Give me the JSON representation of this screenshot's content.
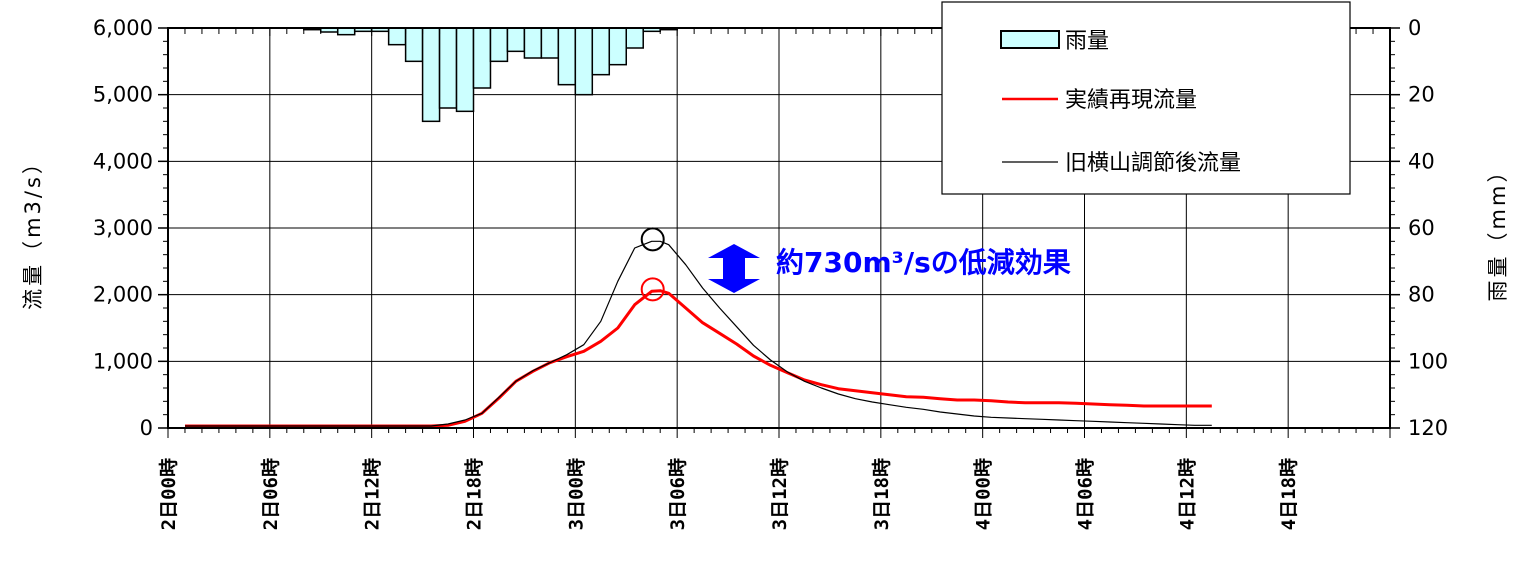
{
  "chart_data": {
    "type": "line",
    "x_tick_labels": [
      "2日00時",
      "2日06時",
      "2日12時",
      "2日18時",
      "3日00時",
      "3日06時",
      "3日12時",
      "3日18時",
      "4日00時",
      "4日06時",
      "4日12時",
      "4日18時"
    ],
    "y_left": {
      "label": "流量（m3/s）",
      "ticks": [
        "6,000",
        "5,000",
        "4,000",
        "3,000",
        "2,000",
        "1,000",
        "0"
      ],
      "range": [
        0,
        6000
      ]
    },
    "y_right": {
      "label": "雨量（mm）",
      "ticks": [
        "0",
        "20",
        "40",
        "60",
        "80",
        "100",
        "120"
      ],
      "range": [
        0,
        120
      ],
      "inverted": true
    },
    "x_range_hours": [
      0,
      72
    ],
    "rainfall": {
      "name": "雨量",
      "color": "#ccffff",
      "hours": [
        8,
        9,
        10,
        11,
        12,
        13,
        14,
        15,
        16,
        17,
        18,
        19,
        20,
        21,
        22,
        23,
        24,
        25,
        26,
        27,
        28,
        29
      ],
      "values": [
        0.5,
        1.2,
        2,
        1,
        1,
        5,
        10,
        28,
        24,
        25,
        18,
        10,
        7,
        9,
        9,
        17,
        20,
        14,
        11,
        6,
        1,
        0.5
      ]
    },
    "series": [
      {
        "name": "実績再現流量",
        "color": "#ff0000",
        "x": [
          1,
          4,
          8,
          12,
          14,
          15.5,
          16.5,
          17.5,
          18.5,
          19.5,
          20.5,
          21.5,
          22.5,
          23.5,
          24.5,
          25.5,
          26.5,
          27.5,
          28.5,
          29,
          29.5,
          30.5,
          31.5,
          32.5,
          33.5,
          34.5,
          35.5,
          36.5,
          37.5,
          38.5,
          39.5,
          40.5,
          41.5,
          42.5,
          43.5,
          44.5,
          45.5,
          46.5,
          47.5,
          48.5,
          49.5,
          50.5,
          51.5,
          52.5,
          53.5,
          54.5,
          55.5,
          56.5,
          57.5,
          58.5,
          59.5,
          60.5,
          61.5
        ],
        "y": [
          30,
          30,
          30,
          30,
          30,
          30,
          40,
          100,
          220,
          450,
          700,
          850,
          980,
          1070,
          1150,
          1300,
          1500,
          1850,
          2050,
          2060,
          2020,
          1800,
          1580,
          1420,
          1260,
          1080,
          940,
          830,
          720,
          650,
          590,
          560,
          530,
          500,
          470,
          460,
          440,
          420,
          420,
          410,
          390,
          380,
          380,
          380,
          370,
          360,
          350,
          340,
          330,
          330,
          330,
          330,
          330
        ]
      },
      {
        "name": "旧横山調節後流量",
        "color": "#000000",
        "x": [
          1,
          4,
          8,
          12,
          14,
          15.5,
          16.5,
          17.5,
          18.5,
          19.5,
          20.5,
          21.5,
          22.5,
          23.5,
          24.5,
          25.5,
          26.5,
          27.5,
          28.5,
          29,
          29.5,
          30.5,
          31.5,
          32.5,
          33.5,
          34.5,
          35.5,
          36.5,
          37.5,
          38.5,
          39.5,
          40.5,
          41.5,
          42.5,
          43.5,
          44.5,
          45.5,
          46.5,
          47.5,
          48.5,
          49.5,
          50.5,
          51.5,
          52.5,
          53.5,
          54.5,
          55.5,
          56.5,
          57.5,
          58.5,
          59.5,
          60.5,
          61.5
        ],
        "y": [
          30,
          30,
          30,
          30,
          30,
          30,
          60,
          120,
          220,
          460,
          700,
          860,
          980,
          1100,
          1250,
          1600,
          2200,
          2700,
          2800,
          2800,
          2750,
          2450,
          2100,
          1800,
          1520,
          1240,
          1020,
          840,
          700,
          600,
          510,
          440,
          390,
          350,
          310,
          280,
          240,
          210,
          180,
          160,
          150,
          140,
          130,
          120,
          110,
          100,
          90,
          80,
          70,
          60,
          50,
          40,
          40
        ]
      }
    ],
    "peak_markers": [
      {
        "series": "旧横山調節後流量",
        "x": 28.5,
        "y": 2830,
        "color": "#000000"
      },
      {
        "series": "実績再現流量",
        "x": 28.5,
        "y": 2080,
        "color": "#ff0000"
      }
    ],
    "annotation": {
      "text": "約730m³/sの低減効果",
      "color": "#0000ff"
    },
    "grid": true,
    "legend": {
      "position": "top-right",
      "rainfall_label": "雨量",
      "red_label": "実績再現流量",
      "black_label": "旧横山調節後流量"
    }
  }
}
